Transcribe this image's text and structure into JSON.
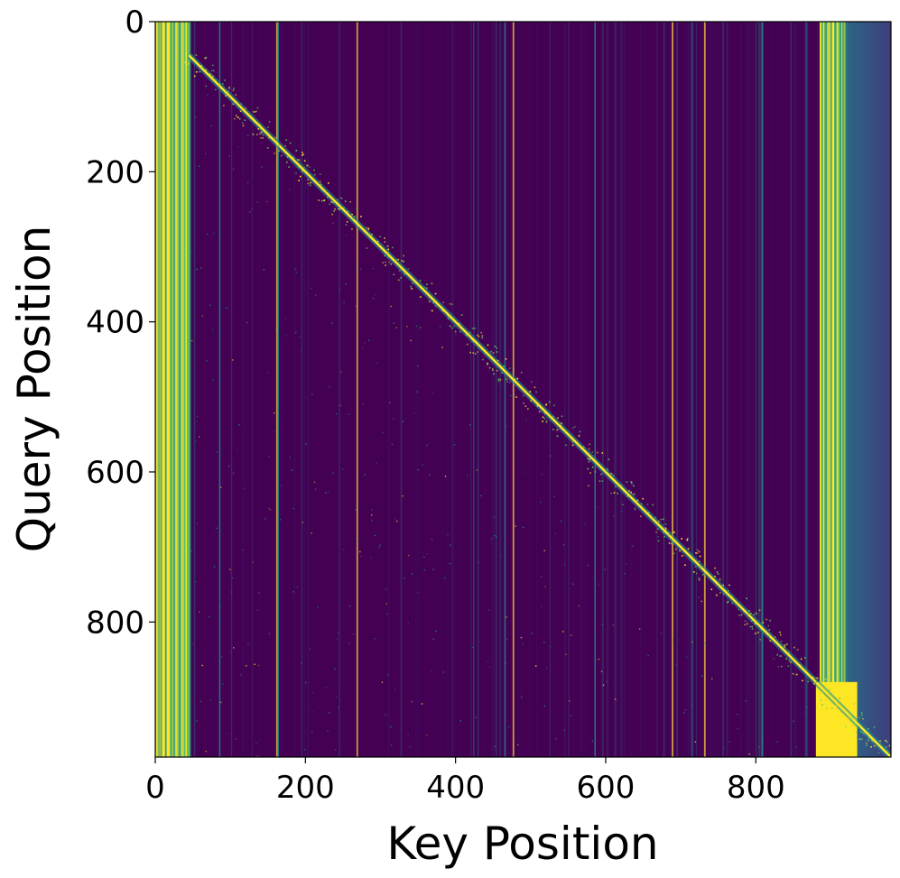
{
  "chart_data": {
    "type": "heatmap",
    "title": "",
    "xlabel": "Key Position",
    "ylabel": "Query Position",
    "xlim": [
      0,
      980
    ],
    "ylim": [
      980,
      0
    ],
    "xticks": [
      0,
      200,
      400,
      600,
      800
    ],
    "yticks": [
      0,
      200,
      400,
      600,
      800
    ],
    "xtick_labels": [
      "0",
      "200",
      "400",
      "600",
      "800"
    ],
    "ytick_labels": [
      "0",
      "200",
      "400",
      "600",
      "800"
    ],
    "colormap": "viridis",
    "grid": false,
    "legend": "none",
    "colors": {
      "low": "#440154",
      "mid": "#21918c",
      "high": "#fde725",
      "axis": "#000000",
      "background": "#ffffff"
    },
    "matrix_size": [
      980,
      980
    ],
    "diagonal": {
      "from": [
        45,
        45
      ],
      "to": [
        980,
        980
      ],
      "intensity": "high"
    },
    "bright_column_bands": [
      {
        "x_start": 0,
        "x_end": 46,
        "intensity": "high"
      },
      {
        "x_start": 885,
        "x_end": 920,
        "intensity": "high"
      }
    ],
    "bright_column_lines": [
      161,
      268,
      476,
      688,
      731
    ],
    "teal_column_lines": [
      85,
      163,
      465,
      585,
      808
    ],
    "right_band": {
      "x_start": 920,
      "x_end": 980,
      "intensity": "mid"
    },
    "bottom_bright_block": {
      "x_start": 880,
      "x_end": 935,
      "y_start": 880,
      "y_end": 980
    }
  }
}
